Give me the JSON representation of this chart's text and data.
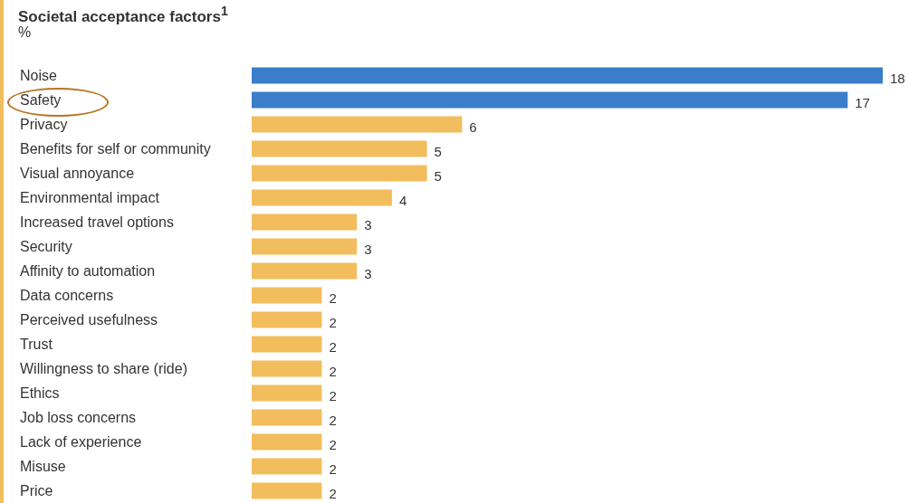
{
  "chart_data": {
    "type": "bar",
    "orientation": "horizontal",
    "title": "Societal acceptance factors$^{1}$",
    "subtitle": "%",
    "categories": [
      "Noise",
      "Safety",
      "Privacy",
      "Benefits for self or community",
      "Visual annoyance",
      "Environmental impact",
      "Increased travel options",
      "Security",
      "Affinity to automation",
      "Data concerns",
      "Perceived usefulness",
      "Trust",
      "Willingness to share (ride)",
      "Ethics",
      "Job loss concerns",
      "Lack of experience",
      "Misuse",
      "Price"
    ],
    "values": [
      18,
      17,
      6,
      5,
      5,
      4,
      3,
      3,
      3,
      2,
      2,
      2,
      2,
      2,
      2,
      2,
      2,
      2
    ],
    "colors": [
      "#3a7dc9",
      "#3a7dc9",
      "#f2bd5c",
      "#f2bd5c",
      "#f2bd5c",
      "#f2bd5c",
      "#f2bd5c",
      "#f2bd5c",
      "#f2bd5c",
      "#f2bd5c",
      "#f2bd5c",
      "#f2bd5c",
      "#f2bd5c",
      "#f2bd5c",
      "#f2bd5c",
      "#f2bd5c",
      "#f2bd5c",
      "#f2bd5c"
    ],
    "data_labels": true
  }
}
